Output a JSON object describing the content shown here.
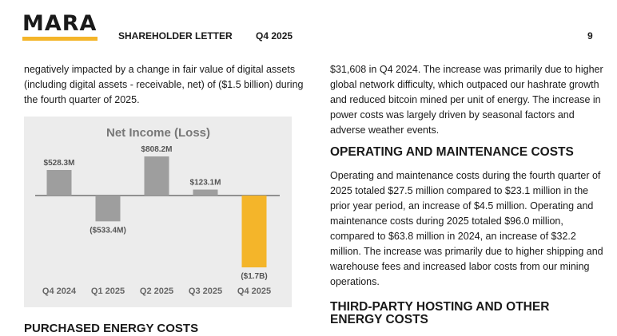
{
  "header": {
    "logo": "MARA",
    "doc_title": "SHAREHOLDER LETTER",
    "period": "Q4 2025",
    "page_number": "9",
    "accent_color": "#f4b52a"
  },
  "left": {
    "paragraph": "negatively impacted by a change in fair value of digital assets (including digital assets - receivable, net) of ($1.5 billion) during the fourth quarter of 2025.",
    "bottom_heading": "PURCHASED ENERGY COSTS"
  },
  "right": {
    "para1": "$31,608 in Q4 2024. The increase was primarily due to higher global network difficulty, which outpaced our hashrate growth and reduced bitcoin mined per unit of energy. The increase in power costs was largely driven by seasonal factors and adverse weather events.",
    "heading1": "OPERATING AND MAINTENANCE COSTS",
    "para2": "Operating and maintenance costs during the fourth quarter of 2025 totaled $27.5 million compared to $23.1 million in the prior year period, an increase of $4.5 million. Operating and maintenance costs during 2025 totaled $96.0 million, compared to $63.8 million in 2024, an increase of $32.2 million. The increase was primarily due to higher shipping and warehouse fees and increased labor costs from our mining operations.",
    "heading2_line1": "THIRD-PARTY HOSTING AND OTHER",
    "heading2_line2": "ENERGY COSTS"
  },
  "chart_data": {
    "type": "bar",
    "title": "Net Income (Loss)",
    "categories": [
      "Q4 2024",
      "Q1 2025",
      "Q2 2025",
      "Q3 2025",
      "Q4 2025"
    ],
    "values": [
      528.3,
      -533.4,
      808.2,
      123.1,
      -1700
    ],
    "value_labels": [
      "$528.3M",
      "($533.4M)",
      "$808.2M",
      "$123.1M",
      "($1.7B)"
    ],
    "unit": "$M",
    "colors": [
      "#9e9e9e",
      "#9e9e9e",
      "#9e9e9e",
      "#9e9e9e",
      "#f4b52a"
    ],
    "highlight_index": 4,
    "xlabel": "",
    "ylabel": "",
    "grid": false
  }
}
